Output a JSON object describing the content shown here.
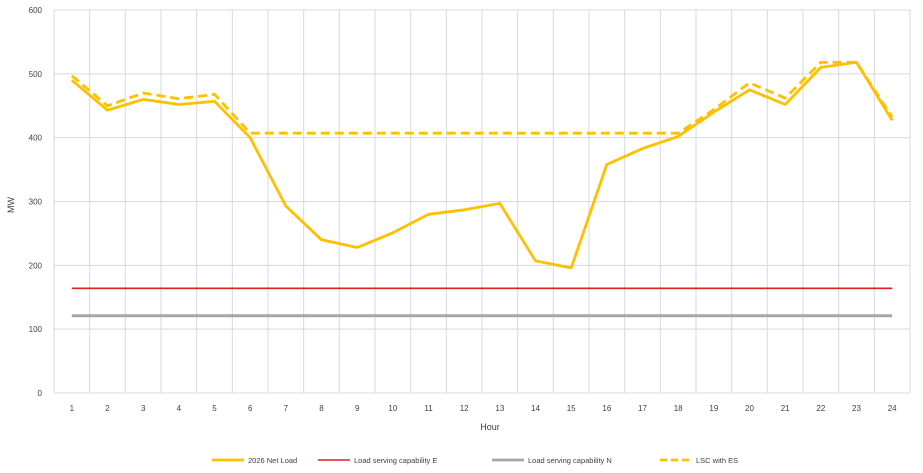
{
  "chart_data": {
    "type": "line",
    "xlabel": "Hour",
    "ylabel": "MW",
    "ylim": [
      0,
      600
    ],
    "yticks": [
      "0",
      "100",
      "200",
      "300",
      "400",
      "500",
      "600"
    ],
    "categories": [
      "1",
      "2",
      "3",
      "4",
      "5",
      "6",
      "7",
      "8",
      "9",
      "10",
      "11",
      "12",
      "13",
      "14",
      "15",
      "16",
      "17",
      "18",
      "19",
      "20",
      "21",
      "22",
      "23",
      "24"
    ],
    "grid": true,
    "legend_position": "bottom",
    "series": [
      {
        "name": "2026 Net Load",
        "color": "#FFC000",
        "style": "solid",
        "values": [
          490,
          443,
          460,
          452,
          457,
          400,
          293,
          240,
          228,
          251,
          280,
          287,
          297,
          207,
          196,
          358,
          383,
          402,
          440,
          475,
          452,
          510,
          518,
          427
        ]
      },
      {
        "name": "Load serving capability E",
        "color": "#E31B23",
        "style": "solid",
        "values": [
          164,
          164,
          164,
          164,
          164,
          164,
          164,
          164,
          164,
          164,
          164,
          164,
          164,
          164,
          164,
          164,
          164,
          164,
          164,
          164,
          164,
          164,
          164,
          164
        ]
      },
      {
        "name": "Load serving capability N",
        "color": "#A6A6A6",
        "style": "solid",
        "values": [
          121,
          121,
          121,
          121,
          121,
          121,
          121,
          121,
          121,
          121,
          121,
          121,
          121,
          121,
          121,
          121,
          121,
          121,
          121,
          121,
          121,
          121,
          121,
          121
        ]
      },
      {
        "name": "LSC with ES",
        "color": "#FFC000",
        "style": "dashed",
        "values": [
          497,
          450,
          470,
          461,
          468,
          407,
          407,
          407,
          407,
          407,
          407,
          407,
          407,
          407,
          407,
          407,
          407,
          407,
          444,
          486,
          462,
          518,
          518,
          432
        ]
      }
    ]
  }
}
